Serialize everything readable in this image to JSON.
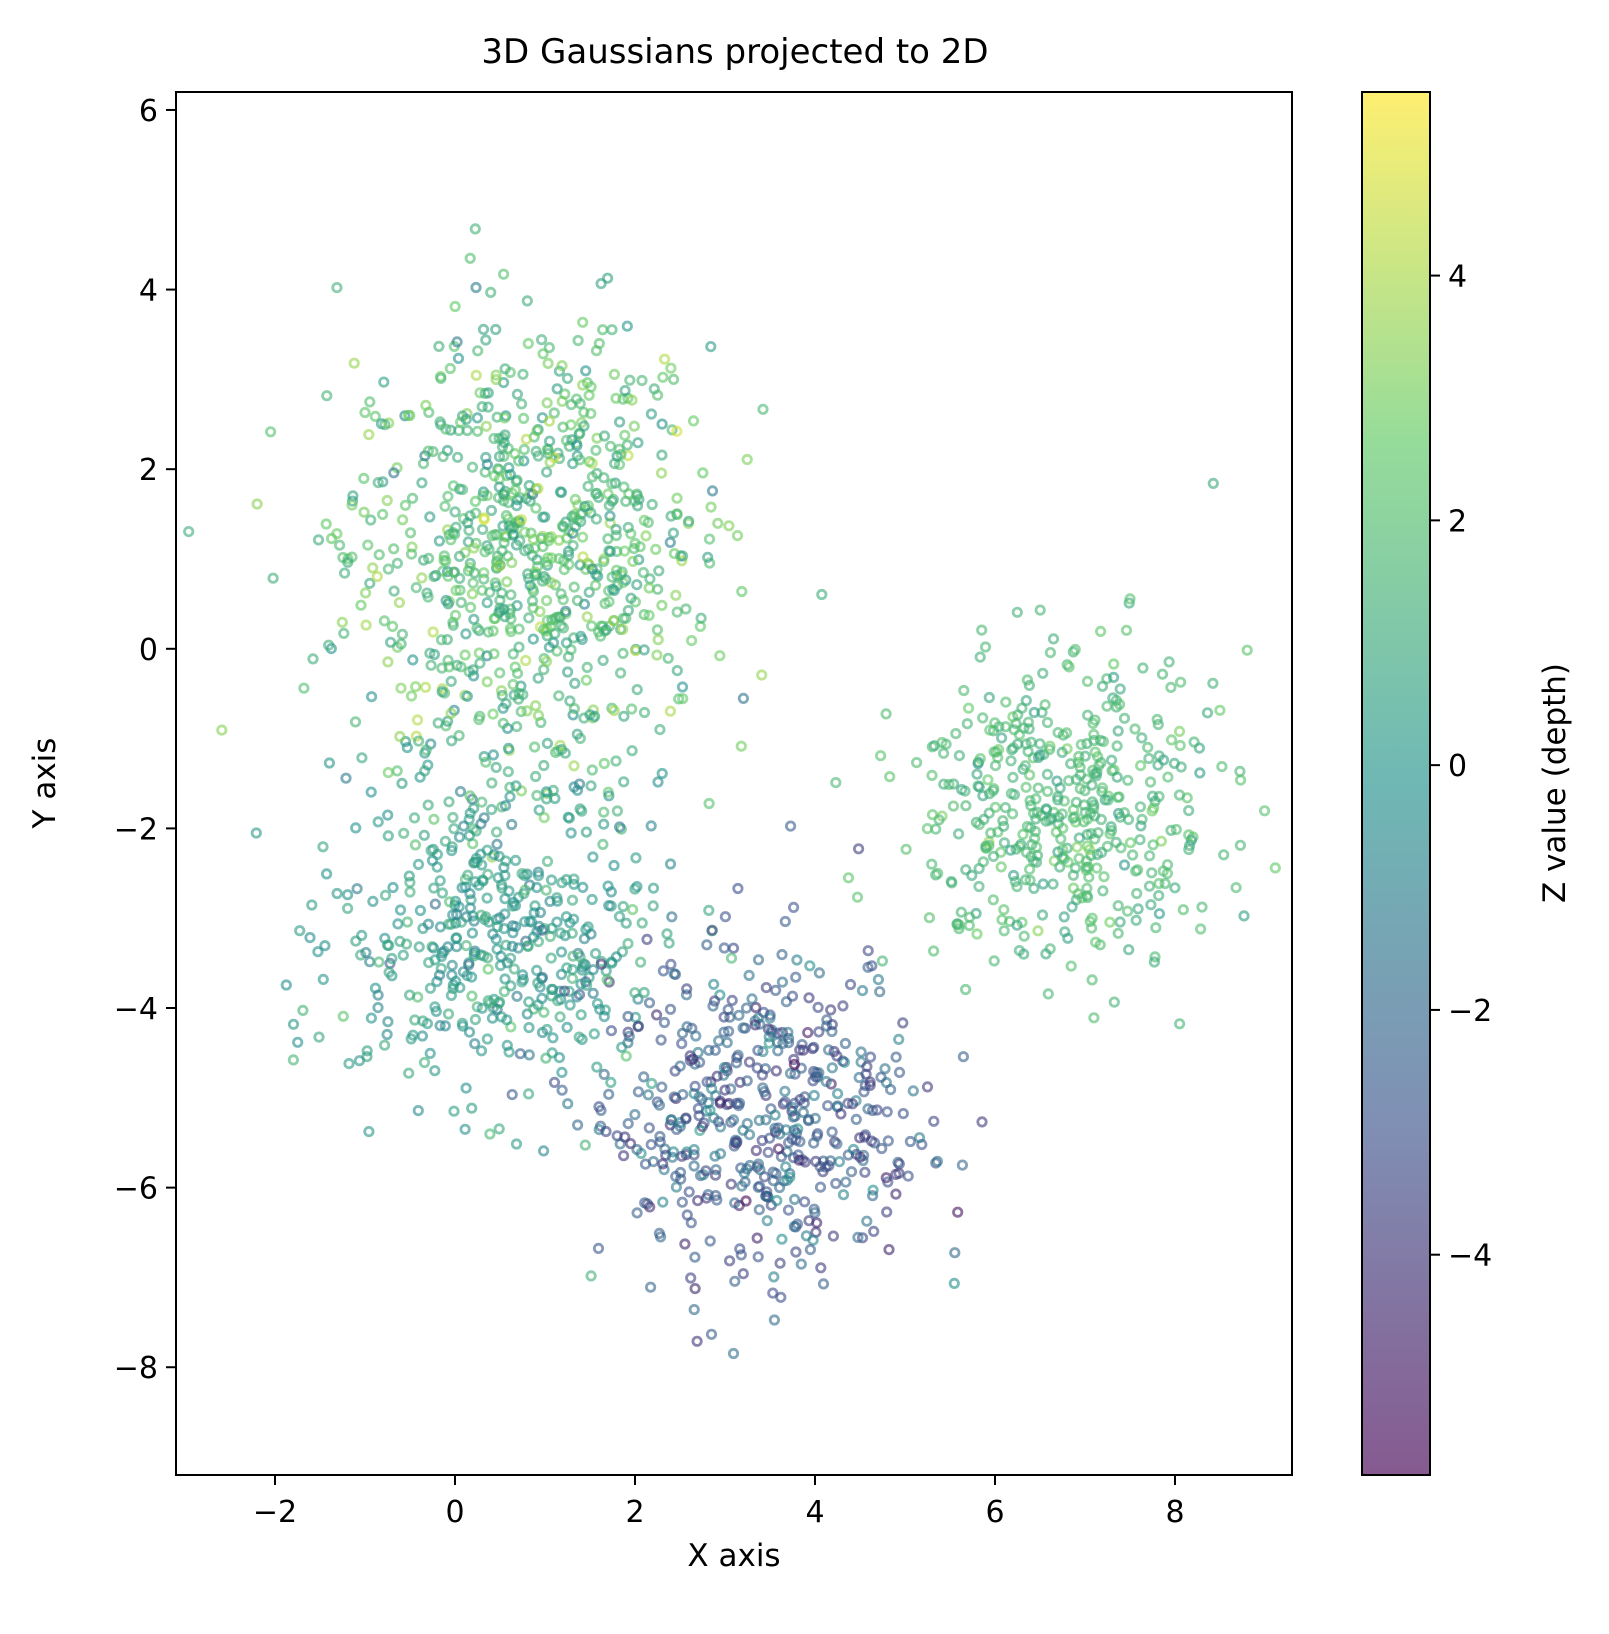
{
  "chart_data": {
    "type": "scatter",
    "title": "3D Gaussians projected to 2D",
    "xlabel": "X axis",
    "ylabel": "Y axis",
    "xlim": [
      -3.1,
      9.3
    ],
    "ylim": [
      -9.2,
      6.2
    ],
    "xticks": [
      -2,
      0,
      2,
      4,
      6,
      8
    ],
    "yticks": [
      6,
      4,
      2,
      0,
      -2,
      -4,
      -6,
      -8
    ],
    "grid": false,
    "legend": "none",
    "colormap": "viridis",
    "alpha": 0.6,
    "colorbar": {
      "label": "Z value (depth)",
      "range": [
        -5.8,
        5.5
      ],
      "ticks": [
        4,
        2,
        0,
        -2,
        -4
      ],
      "stops": [
        "#440154",
        "#3b528b",
        "#21918c",
        "#5ec962",
        "#fde725"
      ]
    },
    "clusters": [
      {
        "center": [
          0.8,
          1.1
        ],
        "spread": [
          1.0,
          1.3
        ],
        "z_mean": 1.7,
        "z_spread": 1.1,
        "count": 800
      },
      {
        "center": [
          0.5,
          -3.2
        ],
        "spread": [
          0.9,
          0.9
        ],
        "z_mean": 0.2,
        "z_spread": 0.8,
        "count": 450
      },
      {
        "center": [
          3.4,
          -5.2
        ],
        "spread": [
          0.9,
          0.9
        ],
        "z_mean": -2.6,
        "z_spread": 1.1,
        "count": 500
      },
      {
        "center": [
          6.8,
          -1.8
        ],
        "spread": [
          0.85,
          0.85
        ],
        "z_mean": 1.6,
        "z_spread": 0.6,
        "count": 450
      }
    ]
  }
}
